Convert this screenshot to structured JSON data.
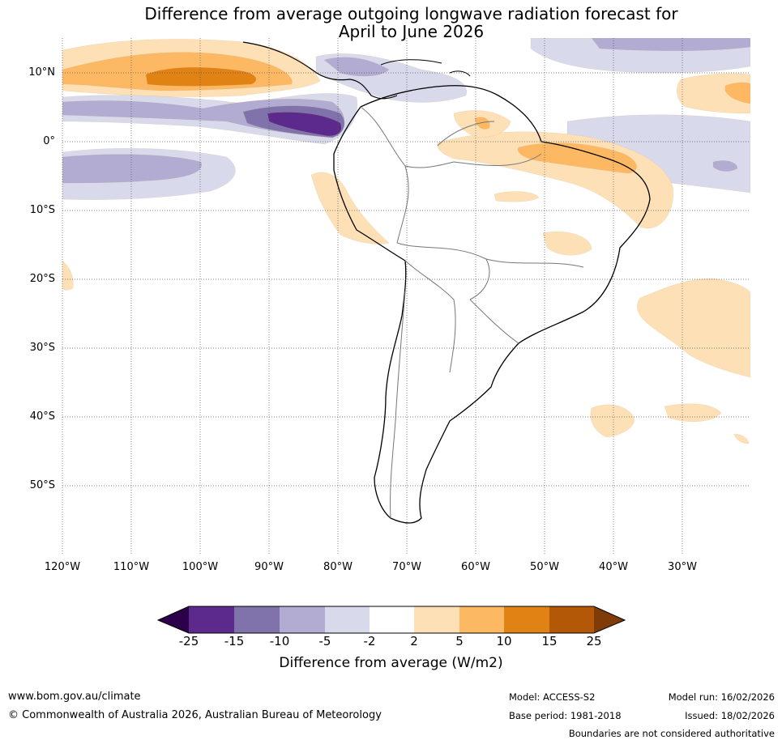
{
  "title_line1": "Difference from average outgoing longwave radiation forecast for",
  "title_line2": "April to June 2026",
  "lat_labels": [
    "10°N",
    "0°",
    "10°S",
    "20°S",
    "30°S",
    "40°S",
    "50°S"
  ],
  "lon_labels": [
    "120°W",
    "110°W",
    "100°W",
    "90°W",
    "80°W",
    "70°W",
    "60°W",
    "50°W",
    "40°W",
    "30°W"
  ],
  "colorbar": {
    "ticks": [
      "-25",
      "-15",
      "-10",
      "-5",
      "-2",
      "2",
      "5",
      "10",
      "15",
      "25"
    ],
    "colors": {
      "below_min": "#2d004b",
      "c1": "#5b2a8c",
      "c2": "#8073ac",
      "c3": "#b2abd2",
      "c4": "#d8daeb",
      "neutral": "#ffffff",
      "w1": "#fee0b6",
      "w2": "#fdb863",
      "w3": "#e08214",
      "w4": "#b35806",
      "above_max": "#7f3b08"
    },
    "title": "Difference from average (W/m2)"
  },
  "footer": {
    "url": "www.bom.gov.au/climate",
    "copyright": "© Commonwealth of Australia 2026, Australian Bureau of Meteorology",
    "model": "Model: ACCESS-S2",
    "base_period": "Base period: 1981-2018",
    "model_run": "Model run: 16/02/2026",
    "issued": "Issued: 18/02/2026",
    "disclaimer": "Boundaries are not considered authoritative"
  }
}
